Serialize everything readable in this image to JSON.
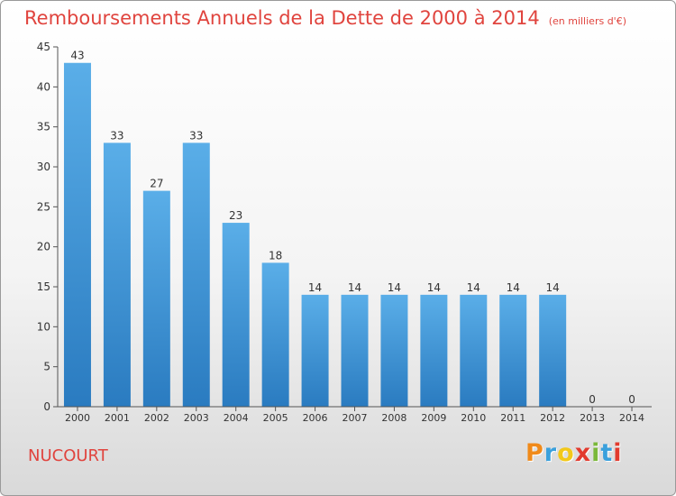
{
  "title": "Remboursements Annuels de la Dette de 2000 à 2014",
  "subtitle": "(en milliers d'€)",
  "commune": "NUCOURT",
  "logo": {
    "letters": [
      "P",
      "r",
      "o",
      "x",
      "i",
      "t",
      "i"
    ],
    "colors": [
      "#f08a1a",
      "#3aa0dc",
      "#f2c81a",
      "#e23b2e",
      "#7ab83a",
      "#3aa0dc",
      "#e23b2e"
    ]
  },
  "chart_data": {
    "type": "bar",
    "categories": [
      "2000",
      "2001",
      "2002",
      "2003",
      "2004",
      "2005",
      "2006",
      "2007",
      "2008",
      "2009",
      "2010",
      "2011",
      "2012",
      "2013",
      "2014"
    ],
    "values": [
      43,
      33,
      27,
      33,
      23,
      18,
      14,
      14,
      14,
      14,
      14,
      14,
      14,
      0,
      0
    ],
    "data_labels": [
      "43",
      "33",
      "27",
      "33",
      "23",
      "18",
      "14",
      "14",
      "14",
      "14",
      "14",
      "14",
      "14",
      "0",
      "0"
    ],
    "ylim": [
      0,
      45
    ],
    "yticks": [
      0,
      5,
      10,
      15,
      20,
      25,
      30,
      35,
      40,
      45
    ],
    "ytick_labels": [
      "0",
      "5",
      "10",
      "15",
      "20",
      "25",
      "30",
      "35",
      "40",
      "45"
    ],
    "grid": false,
    "bar_color_top": "#5aaee8",
    "bar_color_bottom": "#2a7bc0"
  }
}
